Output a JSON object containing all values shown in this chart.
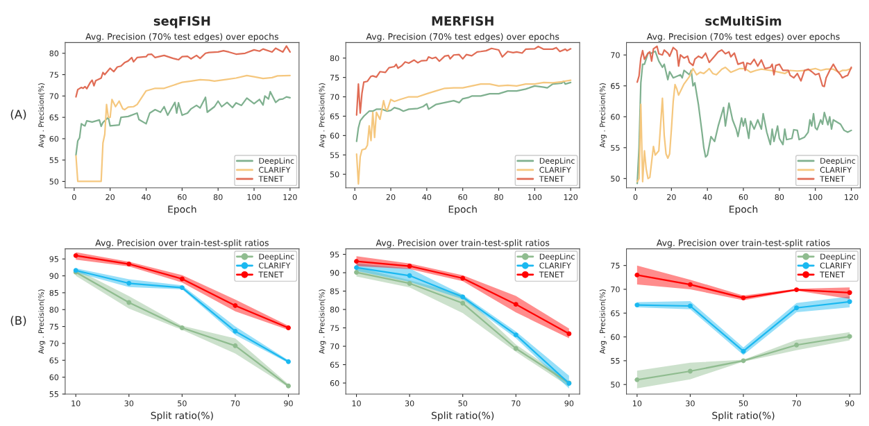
{
  "chart_data": [
    {
      "type": "line",
      "title": "seqFISH",
      "subtitle": "Avg. Precision (70% test edges) over epochs",
      "xlabel": "Epoch",
      "ylabel": "Avg . Precision(%)",
      "annotations": [
        "(A)"
      ],
      "xlim": [
        -5,
        125
      ],
      "xticks": [
        0,
        20,
        40,
        60,
        80,
        100,
        120
      ],
      "ylim": [
        48.5,
        82.5
      ],
      "yticks": [
        50,
        55,
        60,
        65,
        70,
        75,
        80
      ],
      "grid": false,
      "legend": "bottom right",
      "marker": "none",
      "line_style": "solid",
      "series": [
        {
          "name": "DeepLinc",
          "color": "#7fb08f",
          "x": [
            1,
            2,
            3,
            4,
            5,
            6,
            7,
            10,
            14,
            15,
            16,
            19,
            20,
            25,
            26,
            30,
            35,
            36,
            40,
            42,
            45,
            48,
            50,
            52,
            56,
            57,
            58,
            60,
            63,
            65,
            68,
            70,
            73,
            74,
            78,
            80,
            82,
            85,
            88,
            90,
            93,
            96,
            100,
            103,
            105,
            106,
            108,
            109,
            112,
            114,
            116,
            118,
            120
          ],
          "values": [
            56.2,
            59.5,
            60.2,
            63.5,
            63.2,
            63,
            64.2,
            63.9,
            64.4,
            62.9,
            63.8,
            65,
            63,
            63.2,
            65,
            65.2,
            66,
            64.5,
            63.5,
            66,
            66.8,
            66.2,
            67.5,
            65.5,
            68.5,
            66,
            68.4,
            65.5,
            66,
            67,
            67.8,
            67.2,
            69.7,
            66.2,
            67.5,
            68.8,
            67.5,
            68.5,
            67.3,
            68.4,
            67.8,
            69.5,
            68.2,
            69.2,
            67.9,
            70,
            69.3,
            71,
            68.5,
            69.2,
            69.3,
            69.8,
            69.6
          ]
        },
        {
          "name": "CLARIFY",
          "color": "#f5c77e",
          "x": [
            1,
            2,
            15,
            16,
            17,
            18,
            19,
            20,
            21,
            23,
            25,
            27,
            28,
            30,
            33,
            35,
            40,
            45,
            50,
            55,
            60,
            65,
            70,
            75,
            78,
            85,
            90,
            96,
            100,
            105,
            110,
            113,
            120
          ],
          "values": [
            56,
            50,
            50,
            59,
            61,
            68,
            65,
            65,
            69.2,
            67.5,
            68.8,
            67,
            66.8,
            67.4,
            67.5,
            68,
            71.2,
            71.8,
            71.8,
            72.5,
            73.2,
            73.5,
            73.8,
            73.7,
            73.5,
            73.9,
            74.2,
            74.8,
            74.5,
            74.1,
            74.3,
            74.7,
            74.8
          ]
        },
        {
          "name": "TENET",
          "color": "#e06c55",
          "x": [
            1,
            2,
            4,
            5,
            6,
            7,
            9,
            10,
            11,
            12,
            15,
            16,
            17,
            20,
            22,
            24,
            26,
            28,
            30,
            32,
            33,
            35,
            40,
            41,
            43,
            45,
            50,
            55,
            58,
            60,
            63,
            65,
            68,
            70,
            73,
            75,
            80,
            83,
            86,
            90,
            95,
            100,
            103,
            105,
            110,
            112,
            116,
            118,
            120
          ],
          "values": [
            69.8,
            71.5,
            72,
            71.8,
            72.2,
            71.7,
            73.2,
            73.7,
            72.4,
            73.6,
            74.2,
            75.5,
            75,
            76.5,
            75.7,
            76.8,
            77,
            77.8,
            78.2,
            79,
            78,
            79,
            79.2,
            79.7,
            79.8,
            79,
            79.5,
            78.8,
            78.5,
            79.2,
            79.3,
            78.7,
            79.5,
            78.8,
            80,
            80.2,
            80.3,
            80.6,
            80.3,
            79.8,
            80,
            80.8,
            80.5,
            81,
            80.3,
            81.2,
            80.3,
            81.7,
            80.3
          ]
        }
      ]
    },
    {
      "type": "line",
      "title": "MERFISH",
      "subtitle": "Avg. Precision (70% test edges) over epochs",
      "xlabel": "Epoch",
      "ylabel": "Avg . Precision(%)",
      "xlim": [
        -5,
        125
      ],
      "xticks": [
        0,
        20,
        40,
        60,
        80,
        100,
        120
      ],
      "ylim": [
        46.5,
        84
      ],
      "yticks": [
        50,
        55,
        60,
        65,
        70,
        75,
        80
      ],
      "grid": false,
      "legend": "bottom right",
      "marker": "none",
      "line_style": "solid",
      "series": [
        {
          "name": "DeepLinc",
          "color": "#7fb08f",
          "x": [
            1,
            2,
            3,
            5,
            8,
            10,
            12,
            15,
            18,
            20,
            22,
            25,
            27,
            30,
            35,
            38,
            40,
            41,
            45,
            50,
            55,
            58,
            60,
            63,
            65,
            70,
            75,
            80,
            85,
            90,
            95,
            100,
            105,
            107,
            110,
            115,
            116,
            117,
            120
          ],
          "values": [
            58.5,
            62,
            63.8,
            65,
            66.3,
            66.3,
            66.8,
            66.8,
            66.3,
            66.5,
            67.2,
            66.8,
            66.3,
            66.8,
            67,
            67.5,
            68.2,
            66.8,
            68,
            68.5,
            69,
            68.5,
            69.5,
            69.8,
            70.2,
            70.2,
            70.8,
            70.8,
            71.5,
            71.5,
            72,
            72.8,
            72.5,
            72.3,
            73.3,
            73.5,
            74,
            73.3,
            73.7
          ]
        },
        {
          "name": "CLARIFY",
          "color": "#f5c77e",
          "x": [
            1,
            2,
            3,
            4,
            6,
            7,
            8,
            9,
            10,
            11,
            12,
            14,
            16,
            17,
            18,
            20,
            22,
            25,
            30,
            35,
            40,
            45,
            50,
            55,
            60,
            65,
            70,
            75,
            80,
            85,
            90,
            95,
            100,
            105,
            110,
            115,
            120
          ],
          "values": [
            55.2,
            47.5,
            54.5,
            56.3,
            56.6,
            57.5,
            62.5,
            58.7,
            66,
            59.5,
            66,
            64.2,
            69,
            67,
            66.5,
            69.3,
            68.8,
            69.3,
            70,
            70,
            70.8,
            71.5,
            72.2,
            72.3,
            72.3,
            72.8,
            73.3,
            73.3,
            72.8,
            73,
            72.8,
            73.3,
            73.3,
            73.7,
            73.6,
            73.9,
            74.3
          ]
        },
        {
          "name": "TENET",
          "color": "#e06c55",
          "x": [
            1,
            2,
            3,
            4,
            5,
            7,
            9,
            10,
            12,
            14,
            17,
            19,
            22,
            23,
            24,
            26,
            28,
            30,
            33,
            35,
            37,
            40,
            41,
            43,
            45,
            47,
            50,
            52,
            53,
            55,
            58,
            60,
            62,
            65,
            68,
            70,
            73,
            76,
            80,
            82,
            85,
            88,
            90,
            93,
            95,
            100,
            102,
            105,
            110,
            112,
            114,
            117,
            118,
            120
          ],
          "values": [
            65.3,
            73.3,
            65.8,
            71,
            73.8,
            74,
            75.3,
            75.4,
            75.1,
            76.5,
            76.3,
            77.5,
            77.8,
            78.4,
            77.4,
            78,
            79,
            78.7,
            79.5,
            78.8,
            79.3,
            79.4,
            80.3,
            79.9,
            80.2,
            79.2,
            80.5,
            80.7,
            79.8,
            80.8,
            80.9,
            79.8,
            80.9,
            80.6,
            81.6,
            81.7,
            81.9,
            82.5,
            82.1,
            80.3,
            81.7,
            81.4,
            81.6,
            81.3,
            82.3,
            82.4,
            83,
            82.3,
            82.3,
            82.7,
            81.7,
            82.3,
            81.9,
            82.4
          ]
        }
      ]
    },
    {
      "type": "line",
      "title": "scMultiSim",
      "subtitle": "Avg. Precision (70% test edges) over epochs",
      "xlabel": "Epoch",
      "ylabel": "Avg . Precision(%)",
      "xlim": [
        -5,
        125
      ],
      "xticks": [
        0,
        20,
        40,
        60,
        80,
        100,
        120
      ],
      "ylim": [
        48.5,
        72
      ],
      "yticks": [
        50,
        55,
        60,
        65,
        70
      ],
      "grid": false,
      "legend": "bottom right",
      "marker": "none",
      "line_style": "solid",
      "series": [
        {
          "name": "DeepLinc",
          "color": "#7fb08f",
          "x": [
            1,
            2,
            3,
            4,
            5,
            7,
            9,
            11,
            13,
            15,
            16,
            18,
            19,
            21,
            25,
            26,
            27,
            30,
            31,
            32,
            33,
            35,
            37,
            38,
            39,
            40,
            42,
            44,
            46,
            48,
            49,
            50,
            52,
            54,
            56,
            57,
            59,
            60,
            61,
            63,
            64,
            66,
            68,
            70,
            71,
            73,
            75,
            76,
            77,
            79,
            80,
            82,
            83,
            84,
            87,
            88,
            90,
            91,
            94,
            96,
            97,
            98,
            99,
            100,
            101,
            103,
            104,
            105,
            107,
            108,
            109,
            110,
            114,
            116,
            118,
            120
          ],
          "values": [
            49.2,
            55,
            65.5,
            68.5,
            68.5,
            70.3,
            70.3,
            70.6,
            69,
            68,
            68.5,
            66,
            67.3,
            66.3,
            66.8,
            66.3,
            67.5,
            66.8,
            67.5,
            65,
            65.5,
            62,
            57.5,
            55,
            53.5,
            53.8,
            56.8,
            56,
            58.5,
            60.5,
            61.5,
            58.5,
            62.2,
            59.5,
            58,
            56.8,
            59.8,
            58.5,
            59.7,
            56.5,
            59.3,
            58,
            59.5,
            58,
            60.5,
            57.5,
            55.5,
            58,
            56,
            58.5,
            56.5,
            55.5,
            58,
            56.3,
            56.5,
            57.9,
            57.8,
            56.3,
            56.7,
            57.5,
            59.5,
            58.5,
            60.5,
            58.2,
            57.9,
            59.5,
            58.8,
            60.7,
            58.7,
            60,
            58,
            59.5,
            58.8,
            57.8,
            57.5,
            57.8
          ]
        },
        {
          "name": "CLARIFY",
          "color": "#f5c77e",
          "x": [
            1,
            2,
            3,
            4,
            5,
            6,
            7,
            8,
            10,
            11,
            13,
            15,
            16,
            17,
            18,
            19,
            20,
            21,
            22,
            23,
            24,
            27,
            30,
            32,
            34,
            36,
            38,
            40,
            41,
            43,
            45,
            48,
            50,
            53,
            58,
            61,
            64,
            67,
            70,
            75,
            80,
            83,
            86,
            90,
            95,
            100,
            103,
            106,
            110,
            113,
            115,
            117,
            120
          ],
          "values": [
            49.5,
            50,
            62,
            49.5,
            54.5,
            51.5,
            50,
            50.2,
            55.2,
            53.8,
            54.5,
            63,
            57,
            54,
            53.3,
            54,
            58,
            62.5,
            65.2,
            64.5,
            63.5,
            65.3,
            66.5,
            67.8,
            66.8,
            67.2,
            67,
            67.5,
            67.8,
            67,
            66.8,
            67.7,
            68,
            67.2,
            67.8,
            67.8,
            67.2,
            67.5,
            67.7,
            67.5,
            67.2,
            67,
            67.5,
            67.4,
            67.5,
            67.8,
            67.5,
            67.7,
            67.7,
            67.2,
            67.5,
            67.5,
            67.8
          ]
        },
        {
          "name": "TENET",
          "color": "#e06c55",
          "x": [
            1,
            2,
            3,
            4,
            5,
            7,
            8,
            9,
            10,
            12,
            13,
            15,
            16,
            18,
            19,
            21,
            23,
            24,
            25,
            27,
            29,
            30,
            32,
            33,
            35,
            37,
            39,
            41,
            44,
            46,
            48,
            50,
            52,
            53,
            55,
            57,
            60,
            61,
            62,
            64,
            66,
            68,
            70,
            72,
            75,
            76,
            77,
            78,
            80,
            82,
            85,
            86,
            88,
            90,
            92,
            94,
            96,
            98,
            100,
            102,
            104,
            105,
            106,
            108,
            110,
            112,
            114,
            115,
            117,
            118,
            120
          ],
          "values": [
            65.6,
            66.6,
            69.5,
            70.7,
            69.3,
            70.3,
            70.5,
            69,
            71,
            71.4,
            70.2,
            70,
            70.8,
            70.3,
            69.8,
            71.2,
            70.7,
            68.2,
            70,
            69.5,
            69.8,
            68.8,
            68.3,
            69.3,
            69.8,
            69.5,
            70.3,
            68.8,
            69.8,
            70.5,
            70.8,
            70.2,
            70.5,
            69.7,
            70.3,
            68.5,
            68.8,
            67.5,
            68.7,
            68.5,
            69.3,
            68.2,
            69.2,
            67.8,
            68,
            68.5,
            66.8,
            68.3,
            68.5,
            67.5,
            67.5,
            66.7,
            66.3,
            67,
            65.8,
            67.5,
            67.7,
            67.3,
            66.8,
            67,
            65,
            64.9,
            66.3,
            67.5,
            68.5,
            67.5,
            66.8,
            66.3,
            66.6,
            66.7,
            68
          ]
        }
      ]
    },
    {
      "type": "line",
      "title": "Avg. Precision over train-test-split ratios",
      "xlabel": "Split ratio(%)",
      "ylabel": "Avg . Precision(%)",
      "annotations": [
        "(B)"
      ],
      "xlim": [
        6,
        94
      ],
      "xticks": [
        10,
        30,
        50,
        70,
        90
      ],
      "ylim": [
        55,
        98
      ],
      "yticks": [
        55,
        60,
        65,
        70,
        75,
        80,
        85,
        90,
        95
      ],
      "grid": false,
      "legend": "top right",
      "marker": "circle",
      "line_style": "solid",
      "series": [
        {
          "name": "DeepLinc",
          "color": "#8fbc8f",
          "x": [
            10,
            30,
            50,
            70,
            90
          ],
          "values": [
            91.1,
            82.1,
            74.6,
            69.3,
            57.4
          ],
          "lower": [
            90,
            80.3,
            74,
            67,
            57
          ],
          "upper": [
            92,
            84,
            75.2,
            71.5,
            57.9
          ]
        },
        {
          "name": "CLARIFY",
          "color": "#1ab8f0",
          "x": [
            10,
            30,
            50,
            70,
            90
          ],
          "values": [
            91.6,
            87.8,
            86.5,
            73.6,
            64.6
          ],
          "lower": [
            91,
            86.7,
            86,
            72.5,
            64.2
          ],
          "upper": [
            92.2,
            89,
            87.2,
            75,
            65
          ]
        },
        {
          "name": "TENET",
          "color": "#ff0000",
          "x": [
            10,
            30,
            50,
            70,
            90
          ],
          "values": [
            96,
            93.5,
            89.1,
            81.2,
            74.6
          ],
          "lower": [
            94.8,
            92.8,
            88,
            79.5,
            74
          ],
          "upper": [
            97,
            94.2,
            90.2,
            83,
            75.2
          ]
        }
      ]
    },
    {
      "type": "line",
      "title": "Avg. Precision over train-test-split ratios",
      "xlabel": "Split ratio(%)",
      "ylabel": "Avg . Precision(%)",
      "xlim": [
        6,
        94
      ],
      "xticks": [
        10,
        30,
        50,
        70,
        90
      ],
      "ylim": [
        57,
        96.5
      ],
      "yticks": [
        60,
        65,
        70,
        75,
        80,
        85,
        90,
        95
      ],
      "grid": false,
      "legend": "top right",
      "marker": "circle",
      "line_style": "solid",
      "series": [
        {
          "name": "DeepLinc",
          "color": "#8fbc8f",
          "x": [
            10,
            30,
            50,
            70,
            90
          ],
          "values": [
            90.1,
            87.1,
            81.7,
            69.4,
            60
          ],
          "lower": [
            89,
            86,
            79,
            68.5,
            59
          ],
          "upper": [
            91.5,
            88,
            84,
            70.5,
            60.5
          ]
        },
        {
          "name": "CLARIFY",
          "color": "#1ab8f0",
          "x": [
            10,
            30,
            50,
            70,
            90
          ],
          "values": [
            91.4,
            89.2,
            83.4,
            73.1,
            59.9
          ],
          "lower": [
            90.5,
            87.5,
            82.8,
            72.2,
            58.5
          ],
          "upper": [
            92.5,
            91.2,
            84,
            74,
            62
          ]
        },
        {
          "name": "TENET",
          "color": "#ff0000",
          "x": [
            10,
            30,
            50,
            70,
            90
          ],
          "values": [
            93.1,
            91.8,
            88.5,
            81.4,
            73.4
          ],
          "lower": [
            91.8,
            91,
            87.7,
            79.2,
            72.2
          ],
          "upper": [
            94.5,
            92.5,
            89.3,
            83.7,
            74.8
          ]
        }
      ]
    },
    {
      "type": "line",
      "title": "Avg. Precision over train-test-split ratios",
      "xlabel": "Split ratio(%)",
      "ylabel": "Avg . Precision(%)",
      "xlim": [
        6,
        94
      ],
      "xticks": [
        10,
        30,
        50,
        70,
        90
      ],
      "ylim": [
        48,
        78.5
      ],
      "yticks": [
        50,
        55,
        60,
        65,
        70,
        75
      ],
      "grid": false,
      "legend": "top right",
      "marker": "circle",
      "line_style": "solid",
      "series": [
        {
          "name": "DeepLinc",
          "color": "#8fbc8f",
          "x": [
            10,
            30,
            50,
            70,
            90
          ],
          "values": [
            51,
            52.8,
            55,
            58.3,
            60.1
          ],
          "lower": [
            49.2,
            51.1,
            54.8,
            57.2,
            59.3
          ],
          "upper": [
            52.9,
            54.6,
            55.2,
            59.4,
            61
          ]
        },
        {
          "name": "CLARIFY",
          "color": "#1ab8f0",
          "x": [
            10,
            30,
            50,
            70,
            90
          ],
          "values": [
            66.7,
            66.5,
            57,
            66.1,
            67.4
          ],
          "lower": [
            66.2,
            65.8,
            56.2,
            65.2,
            66.2
          ],
          "upper": [
            67.3,
            67.5,
            57.8,
            67.1,
            68.5
          ]
        },
        {
          "name": "TENET",
          "color": "#ff0000",
          "x": [
            10,
            30,
            50,
            70,
            90
          ],
          "values": [
            73,
            71,
            68.2,
            69.9,
            69.3
          ],
          "lower": [
            71,
            70,
            67.7,
            69.7,
            68
          ],
          "upper": [
            75,
            72,
            68.7,
            70.1,
            70.4
          ]
        }
      ]
    }
  ]
}
